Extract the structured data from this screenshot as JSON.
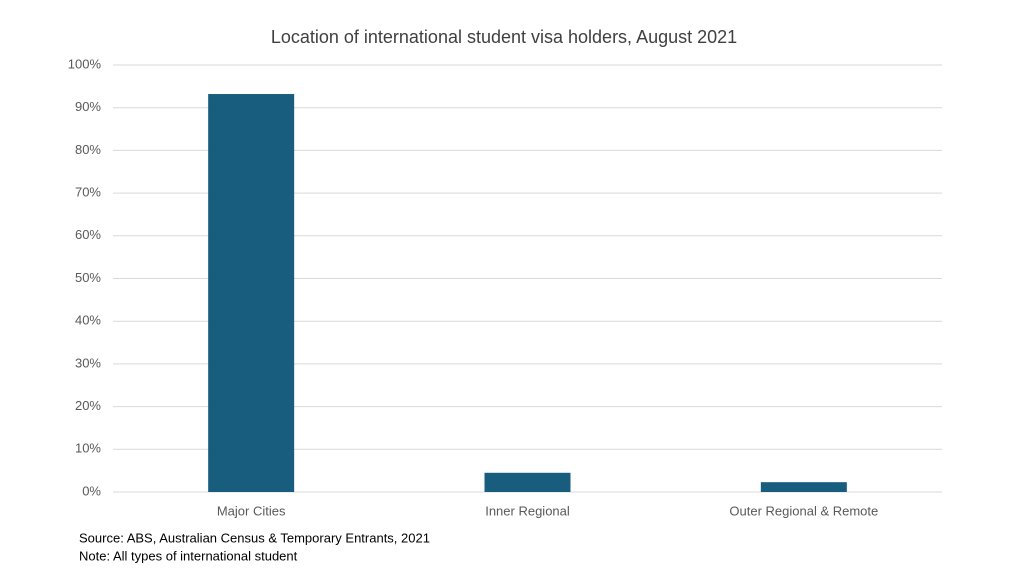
{
  "chart_data": {
    "type": "bar",
    "title": "Location of international student visa holders, August 2021",
    "categories": [
      "Major Cities",
      "Inner Regional",
      "Outer Regional & Remote"
    ],
    "values": [
      93.2,
      4.5,
      2.3
    ],
    "color": "#185c7e",
    "ylim": [
      0,
      100
    ],
    "yticks": [
      {
        "value": 0,
        "label": "0%"
      },
      {
        "value": 10,
        "label": "10%"
      },
      {
        "value": 20,
        "label": "20%"
      },
      {
        "value": 30,
        "label": "30%"
      },
      {
        "value": 40,
        "label": "40%"
      },
      {
        "value": 50,
        "label": "50%"
      },
      {
        "value": 60,
        "label": "60%"
      },
      {
        "value": 70,
        "label": "70%"
      },
      {
        "value": 80,
        "label": "80%"
      },
      {
        "value": 90,
        "label": "90%"
      },
      {
        "value": 100,
        "label": "100%"
      }
    ],
    "grid": true,
    "source": "Source: ABS, Australian Census & Temporary Entrants, 2021",
    "note": "Note: All types of international student"
  }
}
